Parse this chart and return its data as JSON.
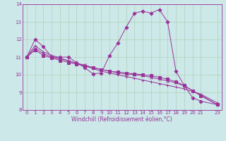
{
  "xlabel": "Windchill (Refroidissement éolien,°C)",
  "background_color": "#cce8e8",
  "grid_color": "#aaccaa",
  "line_color": "#993399",
  "xlim": [
    -0.5,
    23.5
  ],
  "ylim": [
    8,
    14
  ],
  "xticks": [
    0,
    1,
    2,
    3,
    4,
    5,
    6,
    7,
    8,
    9,
    10,
    11,
    12,
    13,
    14,
    15,
    16,
    17,
    18,
    19,
    20,
    21,
    23
  ],
  "yticks": [
    8,
    9,
    10,
    11,
    12,
    13,
    14
  ],
  "series": [
    [
      11.0,
      12.0,
      11.6,
      11.0,
      11.0,
      11.0,
      10.7,
      10.4,
      10.05,
      10.1,
      11.1,
      11.8,
      12.7,
      13.5,
      13.6,
      13.5,
      13.7,
      13.0,
      10.2,
      9.4,
      8.7,
      8.5,
      8.3
    ],
    [
      11.0,
      11.65,
      11.3,
      11.1,
      10.95,
      10.8,
      10.65,
      10.5,
      10.35,
      10.2,
      10.1,
      10.0,
      9.9,
      9.8,
      9.7,
      9.6,
      9.5,
      9.4,
      9.3,
      9.2,
      9.05,
      8.9,
      8.4
    ],
    [
      11.0,
      11.5,
      11.2,
      11.0,
      10.9,
      10.78,
      10.65,
      10.55,
      10.4,
      10.3,
      10.2,
      10.1,
      10.05,
      10.0,
      9.95,
      9.85,
      9.75,
      9.65,
      9.55,
      9.35,
      9.1,
      8.85,
      8.3
    ],
    [
      11.0,
      11.4,
      11.1,
      10.95,
      10.82,
      10.7,
      10.6,
      10.5,
      10.4,
      10.3,
      10.2,
      10.15,
      10.1,
      10.05,
      10.0,
      9.95,
      9.85,
      9.75,
      9.6,
      9.4,
      9.1,
      8.8,
      8.3
    ]
  ],
  "x_values": [
    0,
    1,
    2,
    3,
    4,
    5,
    6,
    7,
    8,
    9,
    10,
    11,
    12,
    13,
    14,
    15,
    16,
    17,
    18,
    19,
    20,
    21,
    23
  ],
  "tick_fontsize": 5.0,
  "xlabel_fontsize": 5.5,
  "marker_size": 2.5,
  "line_width": 0.7
}
